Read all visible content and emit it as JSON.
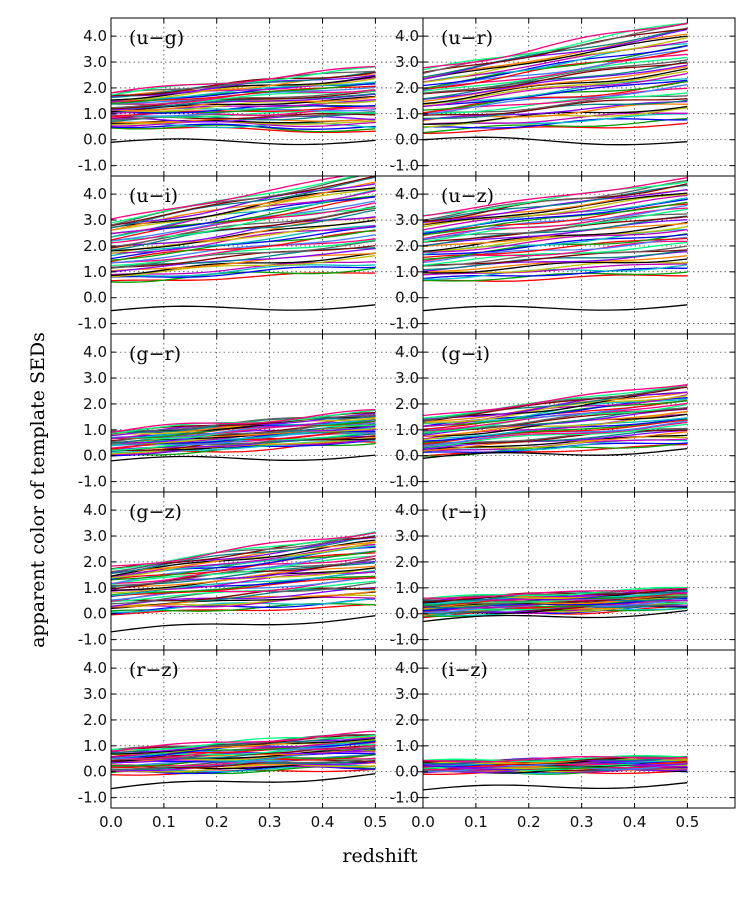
{
  "chart_data": {
    "type": "line",
    "grid": true,
    "xlabel": "redshift",
    "ylabel": "apparent color of template SEDs",
    "x_ticks": [
      "0.0",
      "0.1",
      "0.2",
      "0.3",
      "0.4",
      "0.5"
    ],
    "y_ticks": [
      "-1.0",
      "0.0",
      "1.0",
      "2.0",
      "3.0",
      "4.0"
    ],
    "xlim": [
      0.0,
      0.59
    ],
    "ylim": [
      -1.4,
      4.7
    ],
    "x_range_of_data": [
      0.0,
      0.5
    ],
    "line_colors": [
      "#ff0000",
      "#00a000",
      "#0000ff",
      "#00bfbf",
      "#bf00bf",
      "#c0c000",
      "#000000",
      "#ff8000",
      "#8000ff",
      "#008080",
      "#800000",
      "#606060",
      "#00ff80",
      "#ff0080",
      "#4080ff"
    ],
    "panels": [
      {
        "label": "(u−g)",
        "upper_start": 1.8,
        "upper_end": 2.8,
        "lower_start": 0.5,
        "lower_end": 0.3,
        "min_start": -0.1,
        "min_end": -0.05
      },
      {
        "label": "(u−r)",
        "upper_start": 2.7,
        "upper_end": 4.6,
        "lower_start": 0.3,
        "lower_end": 0.6,
        "min_start": 0.0,
        "min_end": -0.1
      },
      {
        "label": "(u−i)",
        "upper_start": 3.0,
        "upper_end": 4.9,
        "lower_start": 0.6,
        "lower_end": 1.0,
        "min_start": -0.5,
        "min_end": -0.3
      },
      {
        "label": "(u−z)",
        "upper_start": 3.2,
        "upper_end": 4.6,
        "lower_start": 0.6,
        "lower_end": 0.9,
        "min_start": -0.5,
        "min_end": -0.3
      },
      {
        "label": "(g−r)",
        "upper_start": 0.95,
        "upper_end": 1.7,
        "lower_start": 0.0,
        "lower_end": 0.5,
        "min_start": -0.2,
        "min_end": 0.0
      },
      {
        "label": "(g−i)",
        "upper_start": 1.5,
        "upper_end": 2.8,
        "lower_start": 0.0,
        "lower_end": 0.4,
        "min_start": -0.1,
        "min_end": 0.25
      },
      {
        "label": "(g−z)",
        "upper_start": 1.8,
        "upper_end": 3.2,
        "lower_start": 0.0,
        "lower_end": 0.3,
        "min_start": -0.7,
        "min_end": -0.1
      },
      {
        "label": "(r−i)",
        "upper_start": 0.6,
        "upper_end": 1.0,
        "lower_start": -0.1,
        "lower_end": 0.2,
        "min_start": -0.3,
        "min_end": 0.1
      },
      {
        "label": "(r−z)",
        "upper_start": 0.85,
        "upper_end": 1.5,
        "lower_start": -0.1,
        "lower_end": 0.1,
        "min_start": -0.65,
        "min_end": -0.1
      },
      {
        "label": "(i−z)",
        "upper_start": 0.4,
        "upper_end": 0.6,
        "lower_start": -0.05,
        "lower_end": 0.0,
        "min_start": -0.7,
        "min_end": -0.45
      }
    ]
  }
}
